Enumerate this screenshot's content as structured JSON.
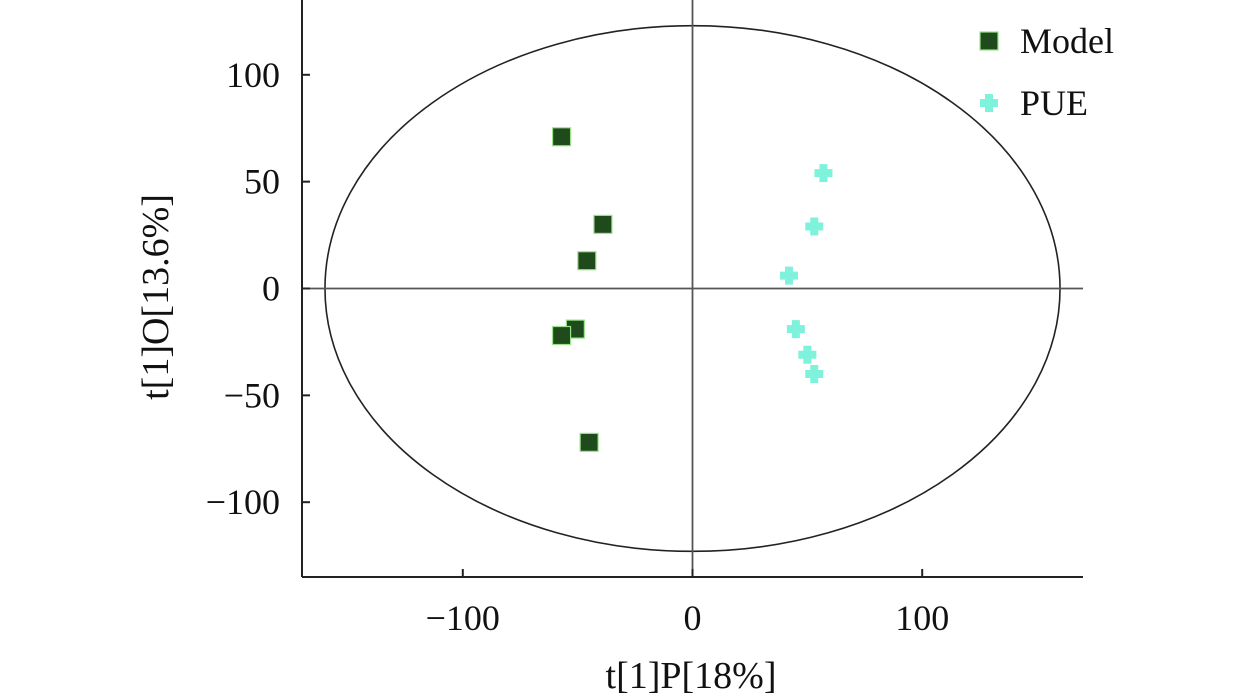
{
  "chart_data": {
    "type": "scatter",
    "title": "",
    "xlabel": "t[1]P[18%]",
    "ylabel": "t[1]O[13.6%]",
    "xlim": [
      -170,
      170
    ],
    "ylim": [
      -135,
      135
    ],
    "xticks": [
      {
        "value": -100,
        "label": "−100"
      },
      {
        "value": 0,
        "label": "0"
      },
      {
        "value": 100,
        "label": "100"
      }
    ],
    "yticks": [
      {
        "value": 100,
        "label": "100"
      },
      {
        "value": 50,
        "label": "50"
      },
      {
        "value": 0,
        "label": "0"
      },
      {
        "value": -50,
        "label": "−50"
      },
      {
        "value": -100,
        "label": "−100"
      }
    ],
    "grid": false,
    "legend": "top-right",
    "ellipse": {
      "rx": 160,
      "ry": 123
    },
    "series": [
      {
        "name": "Model",
        "marker": "square",
        "color": "#1f4a1c",
        "points": [
          {
            "x": -57,
            "y": 71
          },
          {
            "x": -39,
            "y": 30
          },
          {
            "x": -46,
            "y": 13
          },
          {
            "x": -51,
            "y": -19
          },
          {
            "x": -57,
            "y": -22
          },
          {
            "x": -45,
            "y": -72
          }
        ]
      },
      {
        "name": "PUE",
        "marker": "diamond",
        "color": "#7ff2dc",
        "points": [
          {
            "x": 57,
            "y": 54
          },
          {
            "x": 53,
            "y": 29
          },
          {
            "x": 42,
            "y": 6
          },
          {
            "x": 45,
            "y": -19
          },
          {
            "x": 50,
            "y": -31
          },
          {
            "x": 53,
            "y": -40
          }
        ]
      }
    ]
  }
}
